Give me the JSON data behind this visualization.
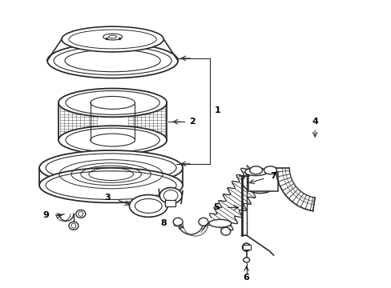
{
  "background_color": "#ffffff",
  "line_color": "#2a2a2a",
  "text_color": "#000000",
  "figsize": [
    4.89,
    3.6
  ],
  "dpi": 100
}
